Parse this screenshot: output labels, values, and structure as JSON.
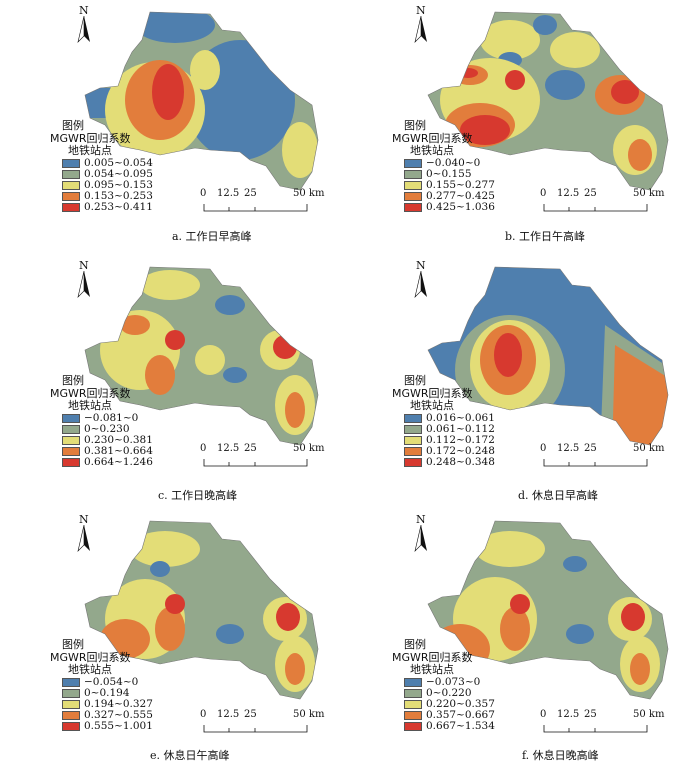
{
  "north_label": "N",
  "legend_title": "图例",
  "legend_subtitle": "MGWR回归系数",
  "legend_stations": "地铁站点",
  "scale_labels": [
    "0",
    "12.5",
    "25",
    "50 km"
  ],
  "colors": [
    "#4f7fae",
    "#93a88c",
    "#e3dd77",
    "#e27d3c",
    "#d7392f"
  ],
  "panels": [
    {
      "caption": "a.  工作日早高峰",
      "classes": [
        "0.005~0.054",
        "0.054~0.095",
        "0.095~0.153",
        "0.153~0.253",
        "0.253~0.411"
      ]
    },
    {
      "caption": "b.  工作日午高峰",
      "classes": [
        "−0.040~0",
        "0~0.155",
        "0.155~0.277",
        "0.277~0.425",
        "0.425~1.036"
      ]
    },
    {
      "caption": "c.  工作日晚高峰",
      "classes": [
        "−0.081~0",
        "0~0.230",
        "0.230~0.381",
        "0.381~0.664",
        "0.664~1.246"
      ]
    },
    {
      "caption": "d.  休息日早高峰",
      "classes": [
        "0.016~0.061",
        "0.061~0.112",
        "0.112~0.172",
        "0.172~0.248",
        "0.248~0.348"
      ]
    },
    {
      "caption": "e.  休息日午高峰",
      "classes": [
        "−0.054~0",
        "0~0.194",
        "0.194~0.327",
        "0.327~0.555",
        "0.555~1.001"
      ]
    },
    {
      "caption": "f.  休息日晚高峰",
      "classes": [
        "−0.073~0",
        "0~0.220",
        "0.220~0.357",
        "0.357~0.667",
        "0.667~1.534"
      ]
    }
  ]
}
